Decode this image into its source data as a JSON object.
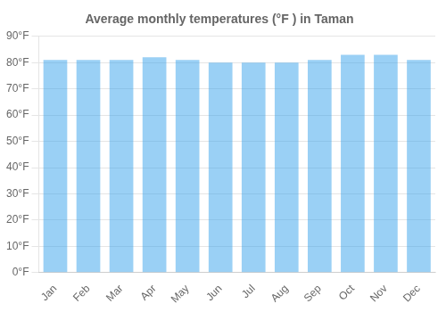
{
  "chart_data": {
    "type": "bar",
    "title": "Average monthly temperatures (°F ) in Taman",
    "categories": [
      "Jan",
      "Feb",
      "Mar",
      "Apr",
      "May",
      "Jun",
      "Jul",
      "Aug",
      "Sep",
      "Oct",
      "Nov",
      "Dec"
    ],
    "values": [
      81,
      81,
      81,
      82,
      81,
      80,
      80,
      80,
      81,
      83,
      83,
      81
    ],
    "ylim": [
      0,
      90
    ],
    "yticks": [
      {
        "value": 0,
        "label": "0°F"
      },
      {
        "value": 10,
        "label": "10°F"
      },
      {
        "value": 20,
        "label": "20°F"
      },
      {
        "value": 30,
        "label": "30°F"
      },
      {
        "value": 40,
        "label": "40°F"
      },
      {
        "value": 50,
        "label": "50°F"
      },
      {
        "value": 60,
        "label": "60°F"
      },
      {
        "value": 70,
        "label": "70°F"
      },
      {
        "value": 80,
        "label": "80°F"
      },
      {
        "value": 90,
        "label": "90°F"
      }
    ],
    "grid": true
  }
}
